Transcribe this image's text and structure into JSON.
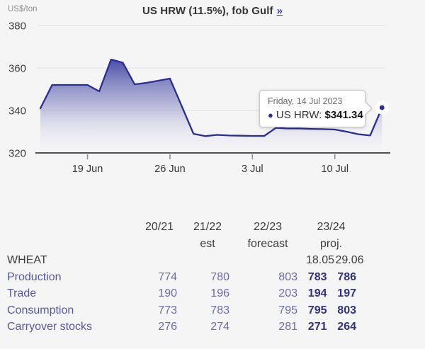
{
  "page": {
    "background": "#f5f5f6"
  },
  "chart": {
    "unit_label": "US$/ton",
    "title": "US HRW (11.5%), fob Gulf",
    "title_link": "»",
    "tooltip": {
      "date": "Friday, 14 Jul 2023",
      "bullet": "●",
      "series": "US HRW:",
      "value": "$341.34"
    }
  },
  "chart_data": {
    "type": "area",
    "title": "US HRW (11.5%), fob Gulf",
    "ylabel": "US$/ton",
    "ylim": [
      320,
      385
    ],
    "y_ticks": [
      380,
      360,
      340,
      320
    ],
    "x_tick_labels": [
      "19 Jun",
      "26 Jun",
      "3 Jul",
      "10 Jul"
    ],
    "x_tick_indices": [
      4,
      11,
      18,
      25
    ],
    "x": [
      "15 Jun",
      "16 Jun",
      "17 Jun",
      "18 Jun",
      "19 Jun",
      "20 Jun",
      "21 Jun",
      "22 Jun",
      "23 Jun",
      "24 Jun",
      "25 Jun",
      "26 Jun",
      "27 Jun",
      "28 Jun",
      "29 Jun",
      "30 Jun",
      "1 Jul",
      "2 Jul",
      "3 Jul",
      "4 Jul",
      "5 Jul",
      "6 Jul",
      "7 Jul",
      "8 Jul",
      "9 Jul",
      "10 Jul",
      "11 Jul",
      "12 Jul",
      "13 Jul",
      "14 Jul"
    ],
    "values": [
      341,
      352,
      352,
      352,
      352,
      349,
      364,
      362.5,
      352.3,
      353,
      354,
      355,
      342,
      329,
      327.9,
      328.5,
      328.2,
      328.1,
      328,
      328,
      331.8,
      331.5,
      331.5,
      331.3,
      331.2,
      331,
      330,
      328.8,
      328.2,
      341.34
    ],
    "highlight_point": {
      "x": "14 Jul",
      "label": "US HRW",
      "value": 341.34
    },
    "line_color": "#2a2d91",
    "fill_color_top": "#3c41a0",
    "grid": true,
    "legend": "none"
  },
  "table": {
    "headers_line1": [
      "",
      "20/21",
      "21/22",
      "22/23",
      "23/24"
    ],
    "headers_line2": [
      "",
      "",
      "est",
      "forecast",
      "proj."
    ],
    "section_row": {
      "label": "WHEAT",
      "sub_headers": [
        "18.05",
        "29.06"
      ]
    },
    "rows": [
      {
        "label": "Production",
        "values": [
          "774",
          "780",
          "803",
          "783",
          "786"
        ]
      },
      {
        "label": "Trade",
        "values": [
          "190",
          "196",
          "203",
          "194",
          "197"
        ]
      },
      {
        "label": "Consumption",
        "values": [
          "773",
          "783",
          "795",
          "795",
          "803"
        ]
      },
      {
        "label": "Carryover stocks",
        "values": [
          "276",
          "274",
          "281",
          "271",
          "264"
        ]
      }
    ]
  }
}
